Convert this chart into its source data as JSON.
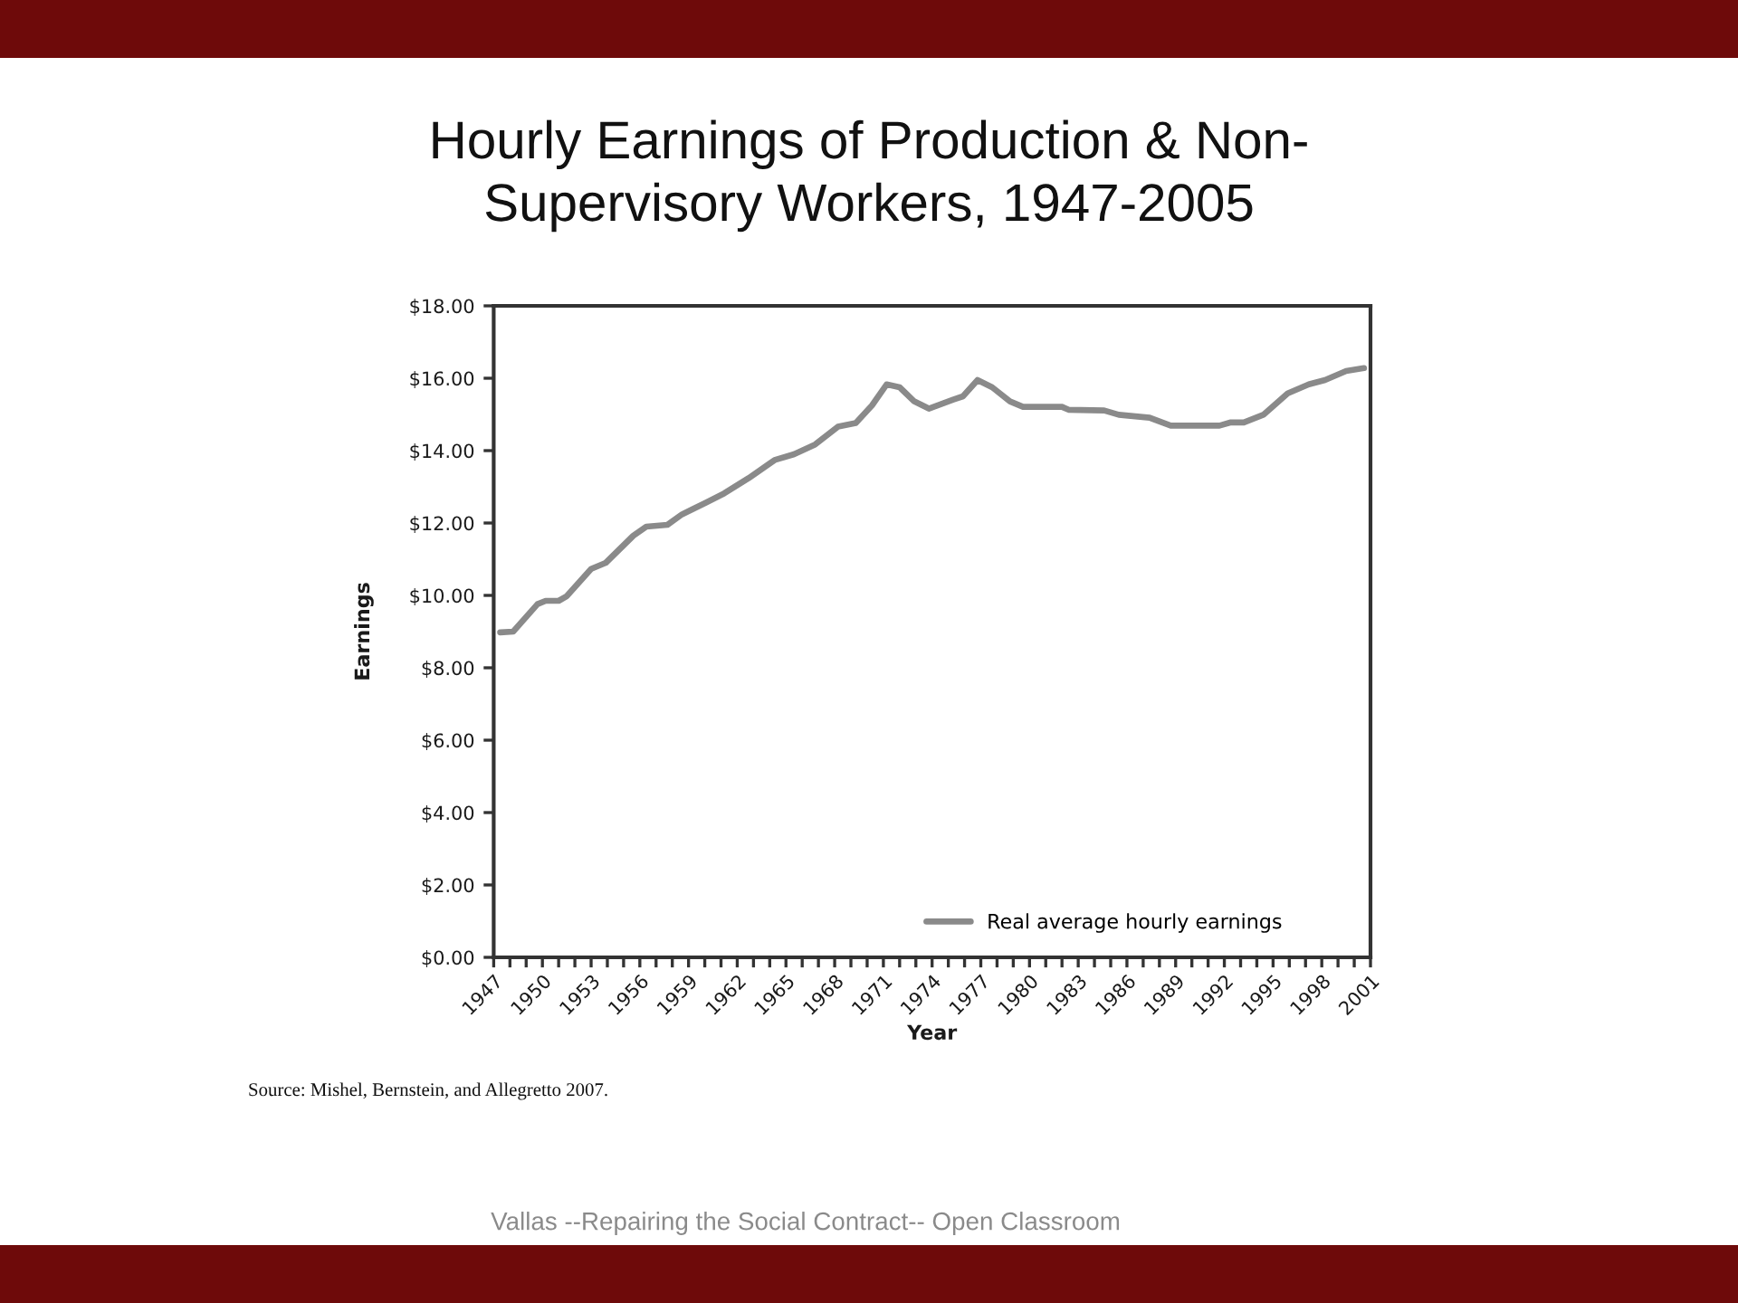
{
  "chart_data": {
    "type": "line",
    "title": "Hourly Earnings of Production & Non-\nSupervisory Workers, 1947-2005",
    "xlabel": "Year",
    "ylabel": "Earnings",
    "annotations": [
      "Source: Mishel, Bernstein, and Allegretto 2007.",
      "Vallas --Repairing the Social Contract-- Open Classroom"
    ],
    "series": [
      {
        "name": "Real average hourly earnings",
        "color": "#8a8a8a",
        "x": [
          1947.4,
          1948.2,
          1949.7,
          1950.2,
          1951.0,
          1951.5,
          1953.0,
          1953.9,
          1955.6,
          1956.4,
          1957.7,
          1958.6,
          1960.1,
          1961.2,
          1962.7,
          1964.3,
          1965.5,
          1966.8,
          1968.2,
          1969.3,
          1970.3,
          1971.2,
          1972.0,
          1972.9,
          1973.8,
          1975.3,
          1975.9,
          1976.8,
          1977.7,
          1978.8,
          1979.6,
          1982.0,
          1982.4,
          1984.6,
          1985.5,
          1987.4,
          1988.7,
          1991.7,
          1992.4,
          1993.2,
          1994.4,
          1995.9,
          1997.2,
          1998.2,
          1999.5,
          2000.6
        ],
        "values": [
          8.98,
          9.0,
          9.76,
          9.85,
          9.85,
          9.98,
          10.73,
          10.9,
          11.65,
          11.9,
          11.95,
          12.24,
          12.57,
          12.82,
          13.24,
          13.74,
          13.9,
          14.17,
          14.66,
          14.76,
          15.25,
          15.83,
          15.75,
          15.36,
          15.16,
          15.41,
          15.5,
          15.95,
          15.75,
          15.36,
          15.21,
          15.21,
          15.13,
          15.11,
          14.99,
          14.91,
          14.69,
          14.69,
          14.78,
          14.78,
          14.99,
          15.58,
          15.83,
          15.95,
          16.2,
          16.28
        ]
      }
    ],
    "xlim": [
      1947,
      2001
    ],
    "xticks": [
      1947,
      {
        "value": 1948,
        "label": null
      },
      {
        "value": 1949,
        "label": null
      },
      1950,
      {
        "value": 1951,
        "label": null
      },
      {
        "value": 1952,
        "label": null
      },
      1953,
      {
        "value": 1954,
        "label": null
      },
      {
        "value": 1955,
        "label": null
      },
      1956,
      {
        "value": 1957,
        "label": null
      },
      {
        "value": 1958,
        "label": null
      },
      1959,
      {
        "value": 1960,
        "label": null
      },
      {
        "value": 1961,
        "label": null
      },
      1962,
      {
        "value": 1963,
        "label": null
      },
      {
        "value": 1964,
        "label": null
      },
      1965,
      {
        "value": 1966,
        "label": null
      },
      {
        "value": 1967,
        "label": null
      },
      1968,
      {
        "value": 1969,
        "label": null
      },
      {
        "value": 1970,
        "label": null
      },
      1971,
      {
        "value": 1972,
        "label": null
      },
      {
        "value": 1973,
        "label": null
      },
      1974,
      {
        "value": 1975,
        "label": null
      },
      {
        "value": 1976,
        "label": null
      },
      1977,
      {
        "value": 1978,
        "label": null
      },
      {
        "value": 1979,
        "label": null
      },
      1980,
      {
        "value": 1981,
        "label": null
      },
      {
        "value": 1982,
        "label": null
      },
      1983,
      {
        "value": 1984,
        "label": null
      },
      {
        "value": 1985,
        "label": null
      },
      1986,
      {
        "value": 1987,
        "label": null
      },
      {
        "value": 1988,
        "label": null
      },
      1989,
      {
        "value": 1990,
        "label": null
      },
      {
        "value": 1991,
        "label": null
      },
      1992,
      {
        "value": 1993,
        "label": null
      },
      {
        "value": 1994,
        "label": null
      },
      1995,
      {
        "value": 1996,
        "label": null
      },
      {
        "value": 1997,
        "label": null
      },
      1998,
      {
        "value": 1999,
        "label": null
      },
      {
        "value": 2000,
        "label": null
      },
      2001
    ],
    "ylim": [
      0,
      18
    ],
    "yticks": [
      {
        "value": 0,
        "label": "$0.00"
      },
      {
        "value": 2,
        "label": "$2.00"
      },
      {
        "value": 4,
        "label": "$4.00"
      },
      {
        "value": 6,
        "label": "$6.00"
      },
      {
        "value": 8,
        "label": "$8.00"
      },
      {
        "value": 10,
        "label": "$10.00"
      },
      {
        "value": 12,
        "label": "$12.00"
      },
      {
        "value": 14,
        "label": "$14.00"
      },
      {
        "value": 16,
        "label": "$16.00"
      },
      {
        "value": 18,
        "label": "$18.00"
      }
    ],
    "grid": false,
    "legend": "bottom right"
  }
}
